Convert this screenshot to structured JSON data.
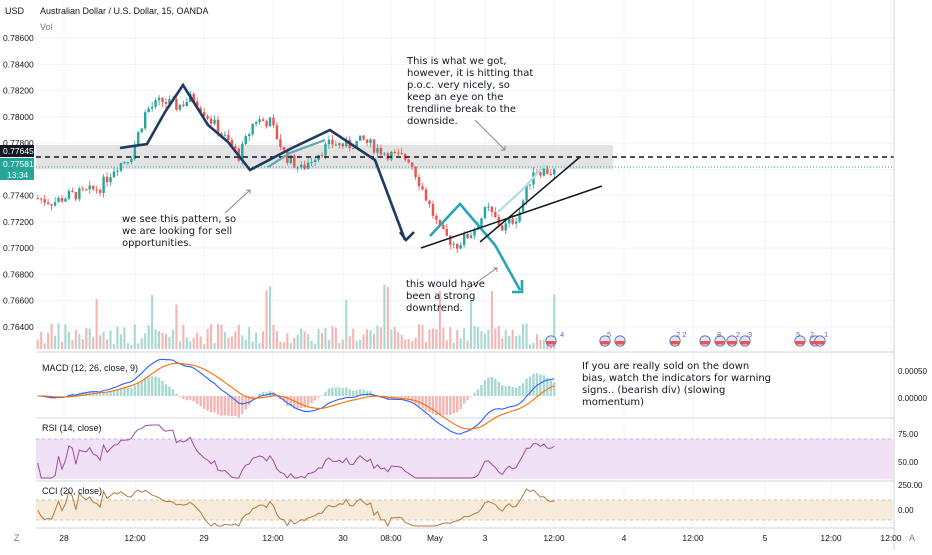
{
  "header": {
    "currency": "USD",
    "title": "Australian Dollar / U.S. Dollar, 15, OANDA",
    "vol_label": "Vol"
  },
  "price_axis": {
    "ticks": [
      "0.78600",
      "0.78400",
      "0.78200",
      "0.78000",
      "0.77800",
      "0.77600",
      "0.77400",
      "0.77200",
      "0.77000",
      "0.76800",
      "0.76600",
      "0.76400"
    ],
    "level_label": "0.77645",
    "last_price_label": "0.77581",
    "countdown": "13:34"
  },
  "time_axis": {
    "ticks": [
      "28",
      "12:00",
      "29",
      "12:00",
      "30",
      "08:00",
      "May",
      "3",
      "12:00",
      "4",
      "12:00",
      "5",
      "12:00",
      "12:00"
    ],
    "corner_left": "Z",
    "corner_right": "A"
  },
  "event_markers": [
    "4",
    "5",
    "2 2",
    "8",
    "2",
    "3",
    "5",
    "2",
    "1"
  ],
  "annotations": {
    "pattern": [
      "we see this pattern, so",
      "we are looking for sell",
      "opportunities."
    ],
    "got": [
      "This is what we got,",
      "however, it is hitting that",
      "p.o.c. very nicely, so",
      "keep an eye on the",
      "trendline break to the",
      "downside."
    ],
    "downtrend": [
      "this would have",
      "been a strong",
      "downtrend."
    ],
    "indicators": [
      "If you are really sold on the down",
      "bias, watch the indicators for warning",
      "signs.. (bearish div) (slowing",
      "momentum)"
    ]
  },
  "macd": {
    "label": "MACD (12, 26, close, 9)",
    "ticks": [
      "0.00050",
      "0.00000"
    ]
  },
  "rsi": {
    "label": "RSI (14, close)",
    "ticks": [
      "75.00",
      "50.00"
    ]
  },
  "cci": {
    "label": "CCI (20, close)",
    "ticks": [
      "250.00",
      "0.00"
    ]
  },
  "colors": {
    "up": "#26a69a",
    "down": "#ef5350",
    "navy": "#1e3a5f",
    "teal": "#26a5b8",
    "rsi_line": "#9c4f9c",
    "rsi_band": "#f0e1f7",
    "cci_line": "#b07a3c",
    "cci_band": "#f7ecdc",
    "macd_line": "#2962ff",
    "signal_line": "#ff6d00"
  },
  "chart_data": {
    "type": "candlestick",
    "symbol": "AUDUSD",
    "interval": "15",
    "ylim": [
      0.763,
      0.787
    ],
    "horizontal_level": 0.77645,
    "last_price": 0.77581,
    "poc_zone": [
      0.7756,
      0.7771
    ],
    "price_path": [
      [
        0,
        0.7738
      ],
      [
        0.03,
        0.7735
      ],
      [
        0.06,
        0.774
      ],
      [
        0.09,
        0.7742
      ],
      [
        0.12,
        0.7746
      ],
      [
        0.15,
        0.7762
      ],
      [
        0.18,
        0.777
      ],
      [
        0.21,
        0.7805
      ],
      [
        0.24,
        0.7812
      ],
      [
        0.27,
        0.7808
      ],
      [
        0.3,
        0.7815
      ],
      [
        0.33,
        0.78
      ],
      [
        0.36,
        0.7785
      ],
      [
        0.39,
        0.777
      ],
      [
        0.42,
        0.7798
      ],
      [
        0.45,
        0.7796
      ],
      [
        0.48,
        0.777
      ],
      [
        0.51,
        0.776
      ],
      [
        0.54,
        0.7772
      ],
      [
        0.57,
        0.778
      ],
      [
        0.6,
        0.7778
      ],
      [
        0.63,
        0.7782
      ],
      [
        0.66,
        0.7775
      ],
      [
        0.69,
        0.777
      ],
      [
        0.72,
        0.7768
      ],
      [
        0.75,
        0.774
      ],
      [
        0.78,
        0.7712
      ],
      [
        0.81,
        0.7702
      ],
      [
        0.84,
        0.7712
      ],
      [
        0.87,
        0.773
      ],
      [
        0.9,
        0.7715
      ],
      [
        0.93,
        0.7725
      ],
      [
        0.96,
        0.776
      ],
      [
        1.0,
        0.7758
      ]
    ]
  }
}
